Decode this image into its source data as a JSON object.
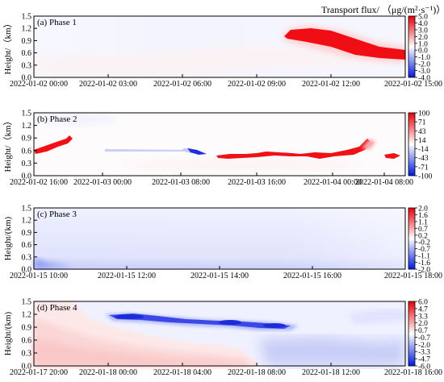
{
  "figure": {
    "colorbar_title": "Transport flux/ （μg/(m²·s⁻¹)）"
  },
  "chart_data": [
    {
      "type": "heatmap",
      "panel_label": "(a) Phase 1",
      "ylabel": "Height/（km）",
      "y_ticks": [
        "0.0",
        "0.3",
        "0.6",
        "0.9",
        "1.2",
        "1.5"
      ],
      "ylim": [
        0,
        1.5
      ],
      "x_ticks": [
        "2022-01-02 00:00",
        "2022-01-02 03:00",
        "2022-01-02 06:00",
        "2022-01-02 09:00",
        "2022-01-02 12:00",
        "2022-01-02 15:00"
      ],
      "colorbar_ticks": [
        "5.0",
        "4.0",
        "3.0",
        "2.0",
        "1.0",
        "0.0",
        "-1.0",
        "-2.0",
        "-3.0",
        "-4.0"
      ],
      "clim": [
        -4.0,
        5.0
      ],
      "features": [
        {
          "desc": "strong positive flux layer",
          "x_start": "2022-01-02 10:00",
          "x_end": "2022-01-02 15:00",
          "height_km": [
            0.5,
            1.2
          ],
          "value": 5.0
        },
        {
          "desc": "weak positive background",
          "height_km": [
            0.0,
            0.6
          ],
          "value": 0.3
        }
      ]
    },
    {
      "type": "heatmap",
      "panel_label": "(b) Phase 2",
      "ylabel": "Height/（km）",
      "y_ticks": [
        "0.0",
        "0.3",
        "0.6",
        "0.9",
        "1.2",
        "1.5"
      ],
      "ylim": [
        0,
        1.5
      ],
      "x_ticks": [
        "2022-01-02 16:00",
        "2022-01-03 00:00",
        "2022-01-03 08:00",
        "2022-01-03 16:00",
        "2022-01-04 00:00",
        "2022-01-04 08:00"
      ],
      "colorbar_ticks": [
        "100",
        "71",
        "43",
        "14",
        "-14",
        "-43",
        "-71",
        "-100"
      ],
      "clim": [
        -100,
        100
      ],
      "features": [
        {
          "desc": "positive flux band",
          "x_start": "2022-01-02 16:00",
          "x_end": "2022-01-02 22:00",
          "height_km": [
            0.55,
            0.85
          ],
          "value": 100
        },
        {
          "desc": "negative flux streak",
          "x_start": "2022-01-03 02:00",
          "x_end": "2022-01-03 11:00",
          "height_km": [
            0.55,
            0.65
          ],
          "value": -100
        },
        {
          "desc": "positive flux band",
          "x_start": "2022-01-03 12:00",
          "x_end": "2022-01-04 13:00",
          "height_km": [
            0.35,
            0.8
          ],
          "value": 100
        }
      ]
    },
    {
      "type": "heatmap",
      "panel_label": "(c) Phase 3",
      "ylabel": "Height/(km)",
      "y_ticks": [
        "0.0",
        "0.3",
        "0.6",
        "0.9",
        "1.2",
        "1.5"
      ],
      "ylim": [
        0,
        1.5
      ],
      "x_ticks": [
        "2022-01-15 10:00",
        "2022-01-15 12:00",
        "2022-01-15 14:00",
        "2022-01-15 16:00",
        "2022-01-15 18:00"
      ],
      "colorbar_ticks": [
        "2.0",
        "1.6",
        "1.1",
        "0.7",
        "0.2",
        "-0.2",
        "-0.7",
        "-1.1",
        "-1.6",
        "-2.0"
      ],
      "clim": [
        -2.0,
        2.0
      ],
      "features": [
        {
          "desc": "weak negative flux throughout",
          "height_km": [
            0.0,
            1.5
          ],
          "value": -0.5
        },
        {
          "desc": "stronger negative near surface",
          "x_start": "2022-01-15 10:00",
          "x_end": "2022-01-15 12:00",
          "height_km": [
            0.0,
            0.15
          ],
          "value": -1.1
        }
      ]
    },
    {
      "type": "heatmap",
      "panel_label": "(d) Phase 4",
      "ylabel": "Height/(km)",
      "y_ticks": [
        "0.0",
        "0.3",
        "0.6",
        "0.9",
        "1.2",
        "1.5"
      ],
      "ylim": [
        0,
        1.5
      ],
      "x_ticks": [
        "2022-01-17 20:00",
        "2022-01-18 00:00",
        "2022-01-18 04:00",
        "2022-01-18 08:00",
        "2022-01-18 12:00",
        "2022-01-18 16:00"
      ],
      "colorbar_ticks": [
        "6.0",
        "4.7",
        "3.3",
        "2.0",
        "0.7",
        "-0.7",
        "-2.0",
        "-3.3",
        "-4.7",
        "-6.0"
      ],
      "clim": [
        -6.0,
        6.0
      ],
      "features": [
        {
          "desc": "positive flux near surface",
          "x_start": "2022-01-17 20:00",
          "x_end": "2022-01-18 09:00",
          "height_km": [
            0.0,
            1.0
          ],
          "value": 1.5
        },
        {
          "desc": "negative flux band aloft",
          "x_start": "2022-01-18 00:00",
          "x_end": "2022-01-18 10:00",
          "height_km": [
            1.0,
            1.3
          ],
          "value": -5.0
        },
        {
          "desc": "negative flux region",
          "x_start": "2022-01-18 04:00",
          "x_end": "2022-01-18 16:00",
          "height_km": [
            0.0,
            1.0
          ],
          "value": -1.5
        }
      ]
    }
  ]
}
